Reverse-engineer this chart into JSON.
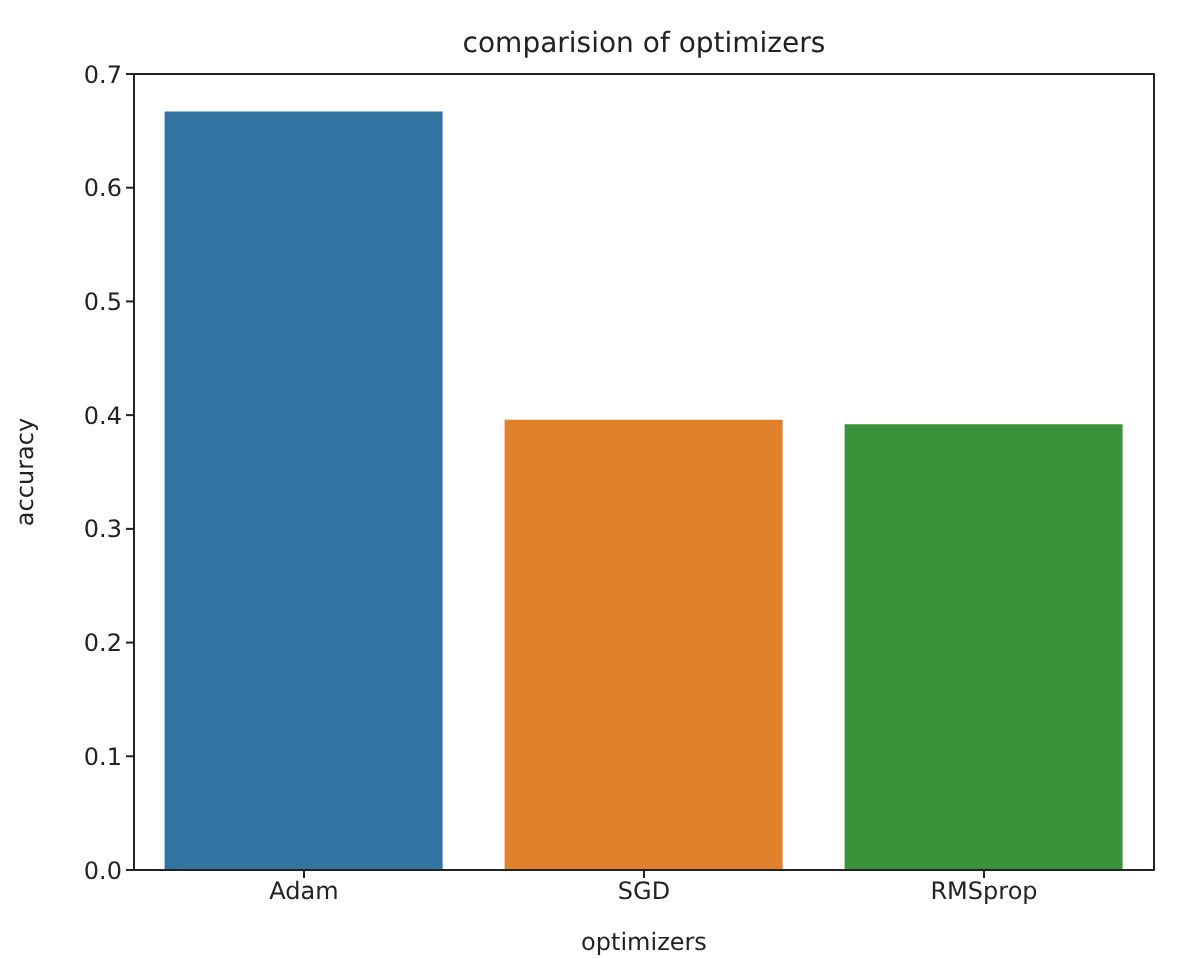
{
  "chart_data": {
    "type": "bar",
    "title": "comparision of optimizers",
    "xlabel": "optimizers",
    "ylabel": "accuracy",
    "categories": [
      "Adam",
      "SGD",
      "RMSprop"
    ],
    "values": [
      0.667,
      0.396,
      0.392
    ],
    "colors": [
      "#3274a1",
      "#e1812c",
      "#3a923a"
    ],
    "ylim": [
      0,
      0.7
    ],
    "yticks": [
      {
        "value": 0,
        "label": "0.0"
      },
      0.1,
      0.2,
      0.3,
      0.4,
      0.5,
      0.6,
      0.7
    ],
    "grid": false,
    "legend": false
  }
}
